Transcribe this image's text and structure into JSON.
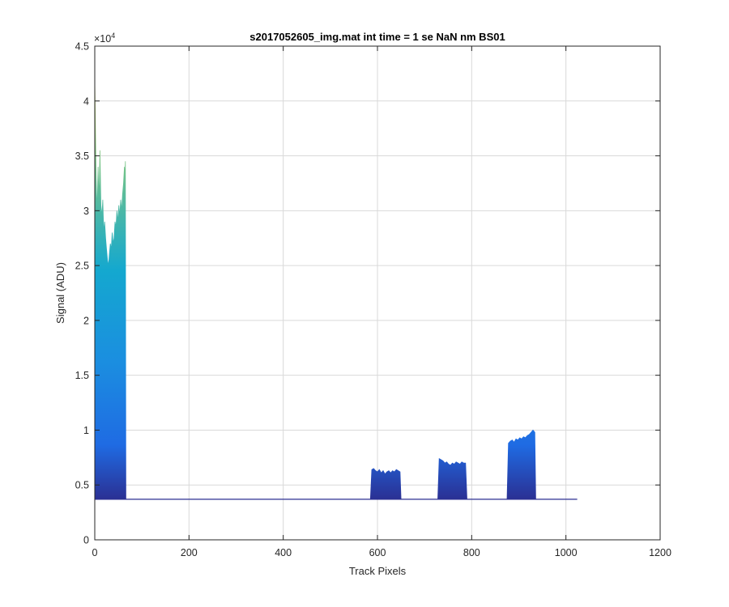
{
  "chart_data": {
    "type": "area",
    "title": "s2017052605_img.mat int time = 1 se  NaN nm BS01",
    "xlabel": "Track Pixels",
    "ylabel": "Signal (ADU)",
    "xlim": [
      0,
      1200
    ],
    "ylim": [
      0,
      45000
    ],
    "y_exponent_label": "×10",
    "y_exponent_power": "4",
    "grid": true,
    "x_ticks": [
      0,
      200,
      400,
      600,
      800,
      1000,
      1200
    ],
    "x_tick_labels": [
      "0",
      "200",
      "400",
      "600",
      "800",
      "1000",
      "1200"
    ],
    "y_ticks": [
      0,
      5000,
      10000,
      15000,
      20000,
      25000,
      30000,
      35000,
      40000,
      45000
    ],
    "y_tick_labels": [
      "0",
      "0.5",
      "1",
      "1.5",
      "2",
      "2.5",
      "3",
      "3.5",
      "4",
      "4.5"
    ],
    "baseline": 3700,
    "x_end": 1024,
    "series": [
      {
        "x": [
          0,
          1,
          3,
          5,
          7,
          9,
          11,
          13,
          15,
          17,
          19,
          21,
          23,
          25,
          27,
          29,
          31,
          33,
          35,
          37,
          39,
          41,
          43,
          45,
          47,
          49,
          51,
          53,
          55,
          57,
          59,
          61,
          63,
          64,
          65,
          66
        ],
        "y": [
          42000,
          39000,
          33000,
          30000,
          34000,
          31000,
          35500,
          30500,
          29500,
          31000,
          28000,
          29000,
          27500,
          26500,
          25500,
          25000,
          26000,
          27000,
          26500,
          28000,
          27000,
          27500,
          29000,
          28500,
          30000,
          29000,
          30500,
          29500,
          31000,
          30000,
          31500,
          32500,
          34000,
          33000,
          34500,
          3700
        ]
      },
      {
        "x": [
          585,
          588,
          592,
          596,
          600,
          604,
          608,
          612,
          616,
          620,
          624,
          628,
          632,
          636,
          640,
          644,
          648,
          650
        ],
        "y": [
          3700,
          6400,
          6500,
          6300,
          6200,
          6400,
          6100,
          6300,
          6000,
          6200,
          6300,
          6100,
          6300,
          6200,
          6400,
          6300,
          6200,
          3700
        ]
      },
      {
        "x": [
          728,
          731,
          735,
          739,
          743,
          747,
          751,
          755,
          759,
          763,
          767,
          771,
          775,
          779,
          783,
          787,
          790
        ],
        "y": [
          3700,
          7400,
          7300,
          7200,
          7000,
          7100,
          6900,
          6800,
          7000,
          6900,
          7100,
          7000,
          6900,
          7100,
          7000,
          7000,
          3700
        ]
      },
      {
        "x": [
          875,
          878,
          882,
          886,
          890,
          894,
          898,
          902,
          906,
          910,
          914,
          918,
          922,
          926,
          930,
          934,
          936
        ],
        "y": [
          3700,
          8800,
          9000,
          9100,
          8900,
          9200,
          9100,
          9300,
          9200,
          9400,
          9300,
          9500,
          9600,
          9800,
          10000,
          9800,
          3700
        ]
      }
    ],
    "colors": {
      "low": "#2b2f92",
      "mid_low": "#1f6be3",
      "mid": "#14a8cf",
      "mid_high": "#72c38a",
      "high": "#f2d04b",
      "grid": "#d9d9d9",
      "axis": "#262626"
    }
  }
}
